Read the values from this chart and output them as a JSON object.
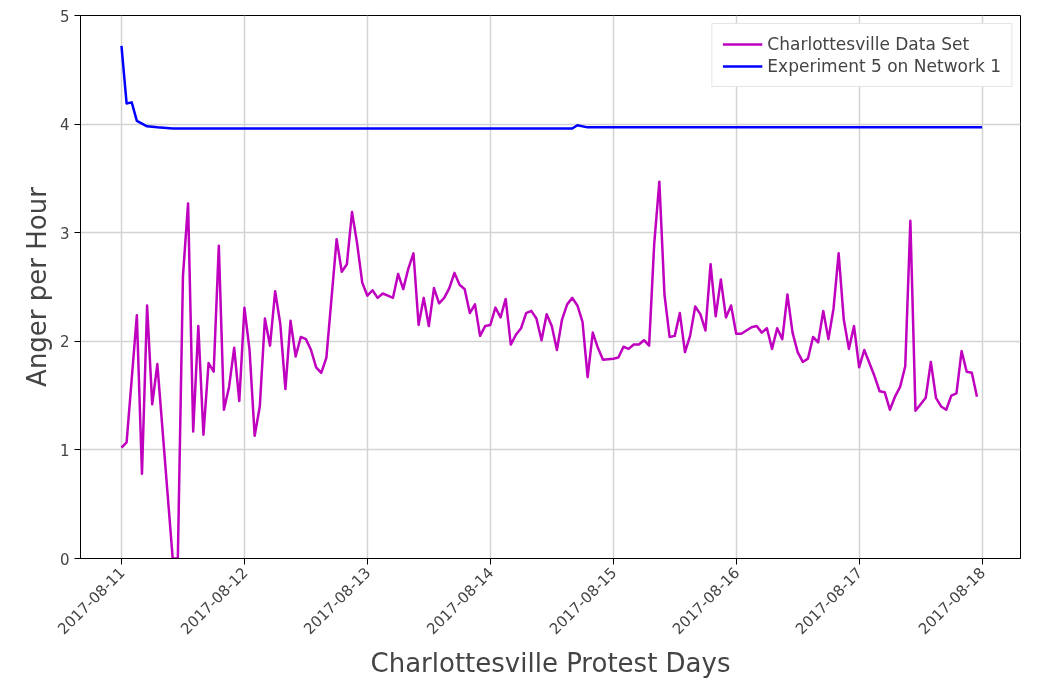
{
  "chart_data": {
    "type": "line",
    "xlabel": "Charlottesville Protest Days",
    "ylabel": "Anger per Hour",
    "xlim": [
      "2017-08-10T16:00",
      "2017-08-18T07:30"
    ],
    "ylim": [
      0,
      5
    ],
    "xticks": [
      "2017-08-11",
      "2017-08-12",
      "2017-08-13",
      "2017-08-14",
      "2017-08-15",
      "2017-08-16",
      "2017-08-17",
      "2017-08-18"
    ],
    "yticks": [
      0,
      1,
      2,
      3,
      4,
      5
    ],
    "grid": true,
    "legend": "top right",
    "line_style": "solid",
    "series": [
      {
        "name": "Charlottesville Data Set",
        "color": "#bf00bf",
        "x": [
          "2017-08-11T00:00",
          "2017-08-11T01:00",
          "2017-08-11T03:00",
          "2017-08-11T04:00",
          "2017-08-11T05:00",
          "2017-08-11T06:00",
          "2017-08-11T07:00",
          "2017-08-11T10:00",
          "2017-08-11T11:00",
          "2017-08-11T12:00",
          "2017-08-11T13:00",
          "2017-08-11T14:00",
          "2017-08-11T15:00",
          "2017-08-11T16:00",
          "2017-08-11T17:00",
          "2017-08-11T18:00",
          "2017-08-11T19:00",
          "2017-08-11T20:00",
          "2017-08-11T21:00",
          "2017-08-11T22:00",
          "2017-08-11T23:00",
          "2017-08-12T00:00",
          "2017-08-12T01:00",
          "2017-08-12T02:00",
          "2017-08-12T03:00",
          "2017-08-12T04:00",
          "2017-08-12T05:00",
          "2017-08-12T06:00",
          "2017-08-12T07:00",
          "2017-08-12T08:00",
          "2017-08-12T09:00",
          "2017-08-12T10:00",
          "2017-08-12T11:00",
          "2017-08-12T12:00",
          "2017-08-12T13:00",
          "2017-08-12T14:00",
          "2017-08-12T15:00",
          "2017-08-12T16:00",
          "2017-08-12T18:00",
          "2017-08-12T19:00",
          "2017-08-12T20:00",
          "2017-08-12T21:00",
          "2017-08-12T22:00",
          "2017-08-12T23:00",
          "2017-08-13T00:00",
          "2017-08-13T01:00",
          "2017-08-13T02:00",
          "2017-08-13T03:00",
          "2017-08-13T04:00",
          "2017-08-13T05:00",
          "2017-08-13T06:00",
          "2017-08-13T07:00",
          "2017-08-13T08:00",
          "2017-08-13T09:00",
          "2017-08-13T10:00",
          "2017-08-13T11:00",
          "2017-08-13T12:00",
          "2017-08-13T13:00",
          "2017-08-13T14:00",
          "2017-08-13T15:00",
          "2017-08-13T16:00",
          "2017-08-13T17:00",
          "2017-08-13T18:00",
          "2017-08-13T19:00",
          "2017-08-13T20:00",
          "2017-08-13T21:00",
          "2017-08-13T22:00",
          "2017-08-13T23:00",
          "2017-08-14T00:00",
          "2017-08-14T01:00",
          "2017-08-14T02:00",
          "2017-08-14T03:00",
          "2017-08-14T04:00",
          "2017-08-14T05:00",
          "2017-08-14T06:00",
          "2017-08-14T07:00",
          "2017-08-14T08:00",
          "2017-08-14T09:00",
          "2017-08-14T10:00",
          "2017-08-14T11:00",
          "2017-08-14T12:00",
          "2017-08-14T13:00",
          "2017-08-14T14:00",
          "2017-08-14T15:00",
          "2017-08-14T16:00",
          "2017-08-14T17:00",
          "2017-08-14T18:00",
          "2017-08-14T19:00",
          "2017-08-14T20:00",
          "2017-08-14T21:00",
          "2017-08-14T22:00",
          "2017-08-15T00:00",
          "2017-08-15T01:00",
          "2017-08-15T02:00",
          "2017-08-15T03:00",
          "2017-08-15T04:00",
          "2017-08-15T05:00",
          "2017-08-15T06:00",
          "2017-08-15T07:00",
          "2017-08-15T08:00",
          "2017-08-15T09:00",
          "2017-08-15T10:00",
          "2017-08-15T11:00",
          "2017-08-15T12:00",
          "2017-08-15T13:00",
          "2017-08-15T14:00",
          "2017-08-15T15:00",
          "2017-08-15T16:00",
          "2017-08-15T17:00",
          "2017-08-15T18:00",
          "2017-08-15T19:00",
          "2017-08-15T20:00",
          "2017-08-15T21:00",
          "2017-08-15T22:00",
          "2017-08-15T23:00",
          "2017-08-16T00:00",
          "2017-08-16T01:00",
          "2017-08-16T02:00",
          "2017-08-16T03:00",
          "2017-08-16T04:00",
          "2017-08-16T05:00",
          "2017-08-16T06:00",
          "2017-08-16T07:00",
          "2017-08-16T08:00",
          "2017-08-16T09:00",
          "2017-08-16T10:00",
          "2017-08-16T11:00",
          "2017-08-16T12:00",
          "2017-08-16T13:00",
          "2017-08-16T14:00",
          "2017-08-16T15:00",
          "2017-08-16T16:00",
          "2017-08-16T17:00",
          "2017-08-16T18:00",
          "2017-08-16T19:00",
          "2017-08-16T20:00",
          "2017-08-16T21:00",
          "2017-08-16T22:00",
          "2017-08-16T23:00",
          "2017-08-17T00:00",
          "2017-08-17T01:00",
          "2017-08-17T02:00",
          "2017-08-17T03:00",
          "2017-08-17T04:00",
          "2017-08-17T05:00",
          "2017-08-17T06:00",
          "2017-08-17T07:00",
          "2017-08-17T08:00",
          "2017-08-17T09:00",
          "2017-08-17T10:00",
          "2017-08-17T11:00",
          "2017-08-17T12:00",
          "2017-08-17T13:00",
          "2017-08-17T14:00",
          "2017-08-17T15:00",
          "2017-08-17T16:00",
          "2017-08-17T17:00",
          "2017-08-17T18:00",
          "2017-08-17T19:00",
          "2017-08-17T20:00",
          "2017-08-17T21:00",
          "2017-08-17T22:00",
          "2017-08-17T23:00"
        ],
        "values": [
          1.02,
          1.07,
          2.24,
          0.78,
          2.33,
          1.42,
          1.79,
          0,
          0,
          2.6,
          3.27,
          1.17,
          2.14,
          1.14,
          1.8,
          1.72,
          2.88,
          1.37,
          1.58,
          1.94,
          1.45,
          2.31,
          1.92,
          1.13,
          1.4,
          2.21,
          1.96,
          2.46,
          2.16,
          1.56,
          2.19,
          1.86,
          2.04,
          2.02,
          1.92,
          1.76,
          1.71,
          1.85,
          2.94,
          2.64,
          2.71,
          3.19,
          2.9,
          2.54,
          2.42,
          2.47,
          2.4,
          2.44,
          2.42,
          2.4,
          2.62,
          2.48,
          2.67,
          2.81,
          2.15,
          2.4,
          2.14,
          2.49,
          2.35,
          2.4,
          2.49,
          2.63,
          2.52,
          2.48,
          2.26,
          2.34,
          2.05,
          2.14,
          2.15,
          2.31,
          2.22,
          2.39,
          1.97,
          2.06,
          2.12,
          2.26,
          2.28,
          2.21,
          2.01,
          2.25,
          2.14,
          1.92,
          2.2,
          2.34,
          2.4,
          2.33,
          2.18,
          1.67,
          2.08,
          1.94,
          1.83,
          1.84,
          1.85,
          1.95,
          1.93,
          1.97,
          1.97,
          2.01,
          1.96,
          2.9,
          3.47,
          2.43,
          2.04,
          2.05,
          2.26,
          1.9,
          2.05,
          2.32,
          2.25,
          2.1,
          2.71,
          2.23,
          2.57,
          2.22,
          2.33,
          2.07,
          2.07,
          2.1,
          2.13,
          2.14,
          2.08,
          2.12,
          1.93,
          2.12,
          2.02,
          2.43,
          2.08,
          1.9,
          1.81,
          1.84,
          2.04,
          1.99,
          2.28,
          2.02,
          2.3,
          2.81,
          2.2,
          1.93,
          2.14,
          1.76,
          1.92,
          1.8,
          1.68,
          1.54,
          1.53,
          1.37,
          1.49,
          1.58,
          1.77,
          3.11,
          1.36,
          1.42,
          1.48,
          1.81,
          1.48,
          1.4,
          1.37,
          1.5,
          1.52,
          1.91,
          1.72,
          1.71,
          1.49
        ]
      },
      {
        "name": "Experiment 5 on Network 1",
        "color": "#0000ff",
        "x": [
          "2017-08-11T00:00",
          "2017-08-11T01:00",
          "2017-08-11T02:00",
          "2017-08-11T03:00",
          "2017-08-11T05:00",
          "2017-08-11T07:00",
          "2017-08-11T10:00",
          "2017-08-14T16:00",
          "2017-08-14T17:00",
          "2017-08-14T19:00",
          "2017-08-18T00:00"
        ],
        "values": [
          4.72,
          4.19,
          4.2,
          4.03,
          3.98,
          3.97,
          3.96,
          3.96,
          3.99,
          3.97,
          3.97
        ]
      }
    ]
  }
}
